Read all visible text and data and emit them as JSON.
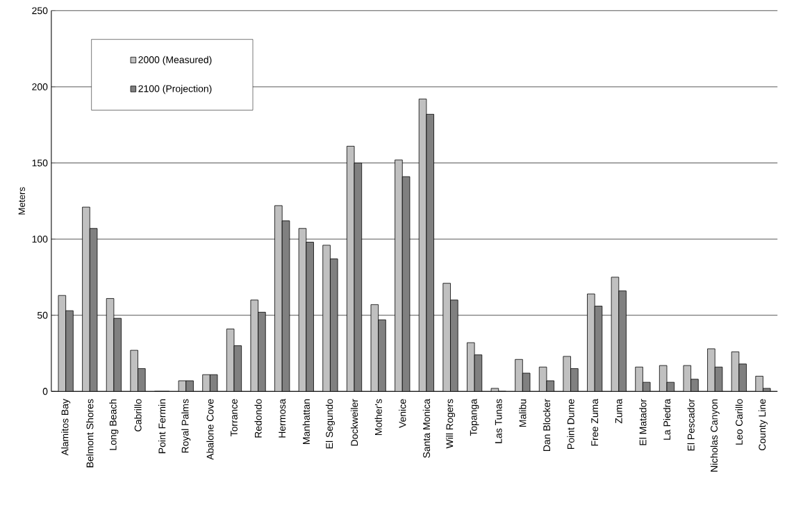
{
  "chart_data": {
    "type": "bar",
    "ylabel": "Meters",
    "categories": [
      "Alamitos Bay",
      "Belmont Shores",
      "Long Beach",
      "Cabrillo",
      "Point Fermin",
      "Royal Palms",
      "Abalone Cove",
      "Torrance",
      "Redondo",
      "Hermosa",
      "Manhattan",
      "El Segundo",
      "Dockweiler",
      "Mother's",
      "Venice",
      "Santa Monica",
      "Will Rogers",
      "Topanga",
      "Las Tunas",
      "Malibu",
      "Dan Blocker",
      "Point Dume",
      "Free Zuma",
      "Zuma",
      "El Matador",
      "La Piedra",
      "El Pescador",
      "Nicholas Canyon",
      "Leo Carillo",
      "County Line"
    ],
    "series": [
      {
        "name": "2000 (Measured)",
        "color": "#c0c0c0",
        "values": [
          63,
          121,
          61,
          27,
          0,
          7,
          11,
          41,
          60,
          122,
          107,
          96,
          161,
          57,
          152,
          192,
          71,
          32,
          2,
          21,
          16,
          23,
          64,
          75,
          16,
          17,
          17,
          28,
          26,
          10
        ]
      },
      {
        "name": "2100 (Projection)",
        "color": "#808080",
        "values": [
          53,
          107,
          48,
          15,
          0,
          7,
          11,
          30,
          52,
          112,
          98,
          87,
          150,
          47,
          141,
          182,
          60,
          24,
          0,
          12,
          7,
          15,
          56,
          66,
          6,
          6,
          8,
          16,
          18,
          2
        ]
      }
    ],
    "ylim": [
      0,
      250
    ],
    "yticks": [
      0,
      50,
      100,
      150,
      200,
      250
    ],
    "grid": "y",
    "legend": "top left"
  }
}
